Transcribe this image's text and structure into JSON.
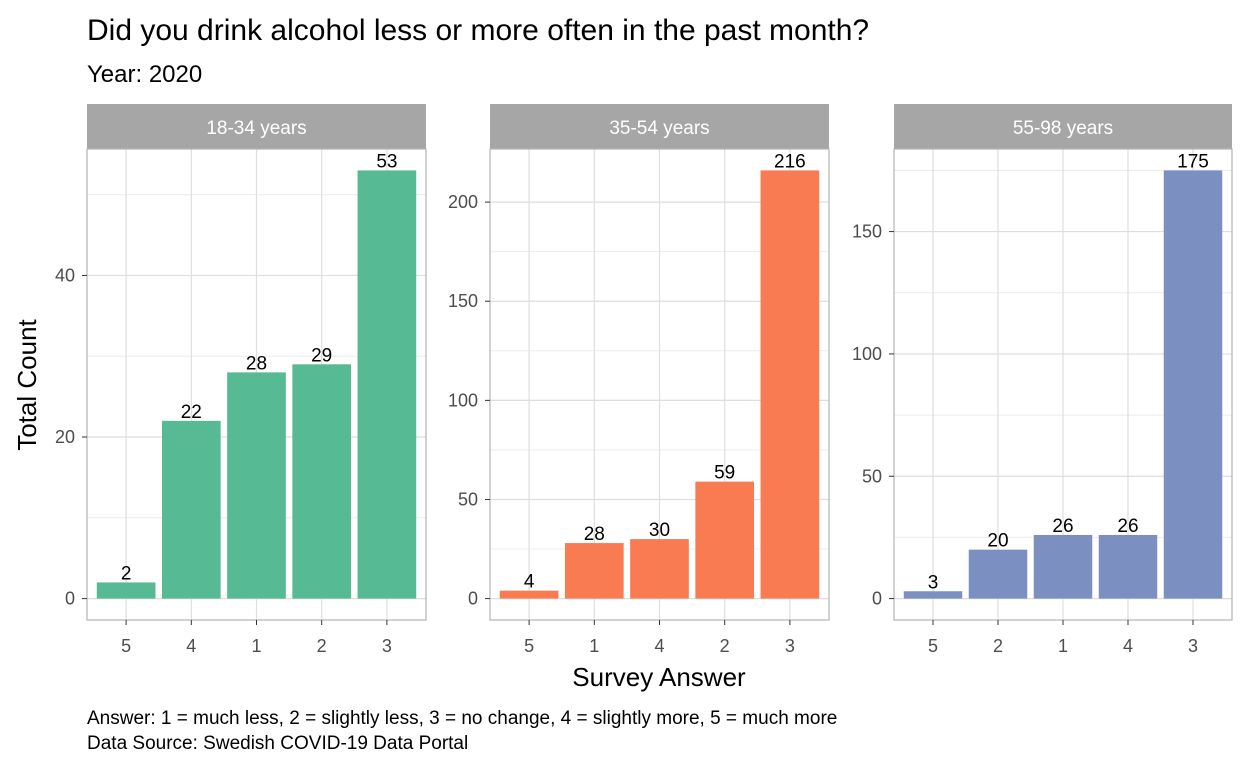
{
  "chart_data": {
    "type": "bar",
    "title": "Did you drink alcohol less or more often in the past month?",
    "subtitle": "Year: 2020",
    "xlabel": "Survey Answer",
    "ylabel": "Total Count",
    "caption_lines": [
      "Answer: 1 = much less, 2 = slightly less, 3 = no change, 4 = slightly more, 5 = much more",
      "Data Source: Swedish COVID-19 Data Portal"
    ],
    "grid": true,
    "legend": "none",
    "panels": [
      {
        "name": "18-34 years",
        "color": "#56BA94",
        "categories": [
          "5",
          "4",
          "1",
          "2",
          "3"
        ],
        "values": [
          2,
          22,
          28,
          29,
          53
        ],
        "ylim": [
          -2.65,
          55.65
        ],
        "yticks": [
          0,
          20,
          40
        ],
        "minor_yticks": [
          10,
          30,
          50
        ]
      },
      {
        "name": "35-54 years",
        "color": "#F87B51",
        "categories": [
          "5",
          "1",
          "4",
          "2",
          "3"
        ],
        "values": [
          4,
          28,
          30,
          59,
          216
        ],
        "ylim": [
          -10.8,
          226.8
        ],
        "yticks": [
          0,
          50,
          100,
          150,
          200
        ],
        "minor_yticks": [
          25,
          75,
          125,
          175
        ]
      },
      {
        "name": "55-98 years",
        "color": "#7B90C0",
        "categories": [
          "5",
          "2",
          "1",
          "4",
          "3"
        ],
        "values": [
          3,
          20,
          26,
          26,
          175
        ],
        "ylim": [
          -8.75,
          183.75
        ],
        "yticks": [
          0,
          50,
          100,
          150
        ],
        "minor_yticks": [
          25,
          75,
          125,
          175
        ]
      }
    ]
  }
}
